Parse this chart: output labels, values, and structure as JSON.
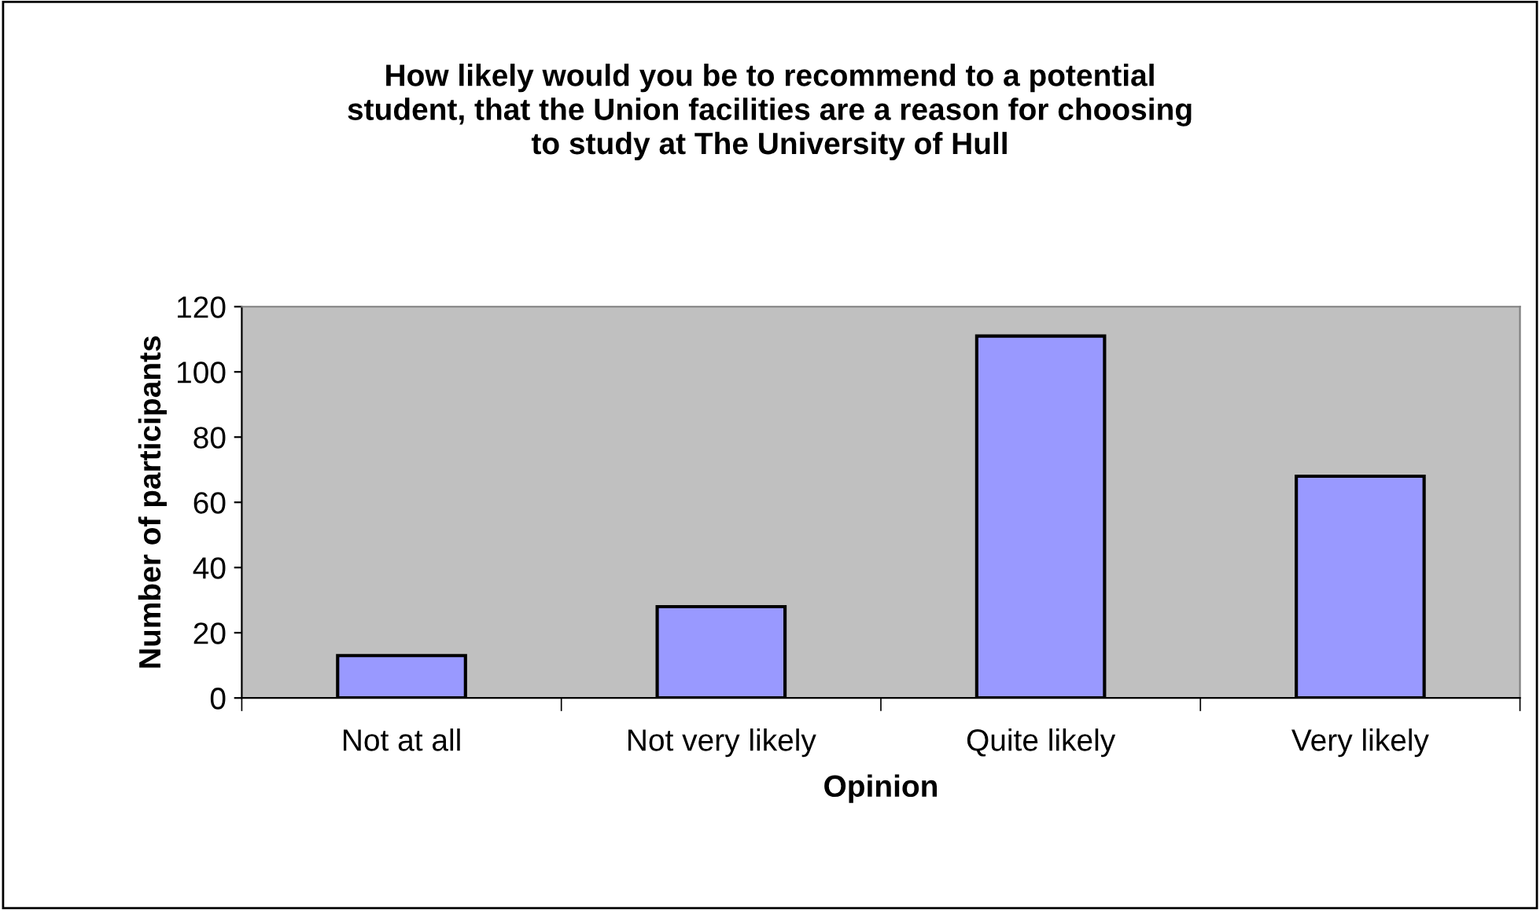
{
  "chart_data": {
    "type": "bar",
    "title": "How likely would you be to recommend to a potential\nstudent, that the Union facilities are a reason for choosing\nto study at The University of Hull",
    "xlabel": "Opinion",
    "ylabel": "Number of participants",
    "categories": [
      "Not at all",
      "Not very likely",
      "Quite likely",
      "Very likely"
    ],
    "values": [
      13,
      28,
      111,
      68
    ],
    "color": "#9999ff",
    "ylim": [
      0,
      120
    ],
    "yticks": [
      0,
      20,
      40,
      60,
      80,
      100,
      120
    ],
    "grid": false,
    "legend": false
  }
}
